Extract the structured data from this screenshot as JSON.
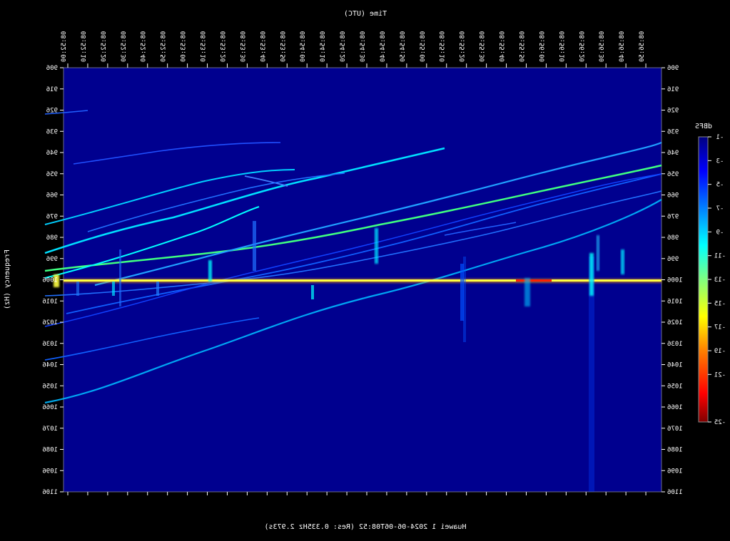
{
  "chart_data": {
    "type": "heatmap",
    "title": "Huawei 1 2024-06-06T08:52 (Res: 0.335Hz 2.973s)",
    "xlabel": "Time (UTC)",
    "ylabel": "Frequency (Hz)",
    "time_ticks": [
      "08:52:00",
      "08:52:10",
      "08:52:20",
      "08:52:30",
      "08:52:40",
      "08:52:50",
      "08:53:00",
      "08:53:10",
      "08:53:20",
      "08:53:30",
      "08:53:40",
      "08:53:50",
      "08:54:00",
      "08:54:10",
      "08:54:20",
      "08:54:30",
      "08:54:40",
      "08:54:50",
      "08:55:00",
      "08:55:10",
      "08:55:20",
      "08:55:30",
      "08:55:40",
      "08:55:50",
      "08:56:00",
      "08:56:10",
      "08:56:20",
      "08:56:30",
      "08:56:40",
      "08:56:50"
    ],
    "freq_ticks": [
      "906",
      "916",
      "926",
      "936",
      "946",
      "956",
      "966",
      "976",
      "986",
      "996",
      "1006",
      "1016",
      "1026",
      "1036",
      "1046",
      "1056",
      "1066",
      "1076",
      "1086",
      "1096",
      "1106"
    ],
    "ylim": [
      906,
      1106
    ],
    "colorbar": {
      "title": "dBFS",
      "ticks": [
        "-25",
        "-21",
        "-19",
        "-17",
        "-15",
        "-13",
        "-11",
        "-9",
        "-7",
        "-5",
        "-3",
        "-1"
      ],
      "colors": [
        "#00007f",
        "#0000ff",
        "#0080ff",
        "#00ffff",
        "#80ff80",
        "#ffff00",
        "#ff8000",
        "#ff0000",
        "#800000"
      ]
    },
    "constant_line_hz": 1006,
    "background_color": "#00008f"
  }
}
